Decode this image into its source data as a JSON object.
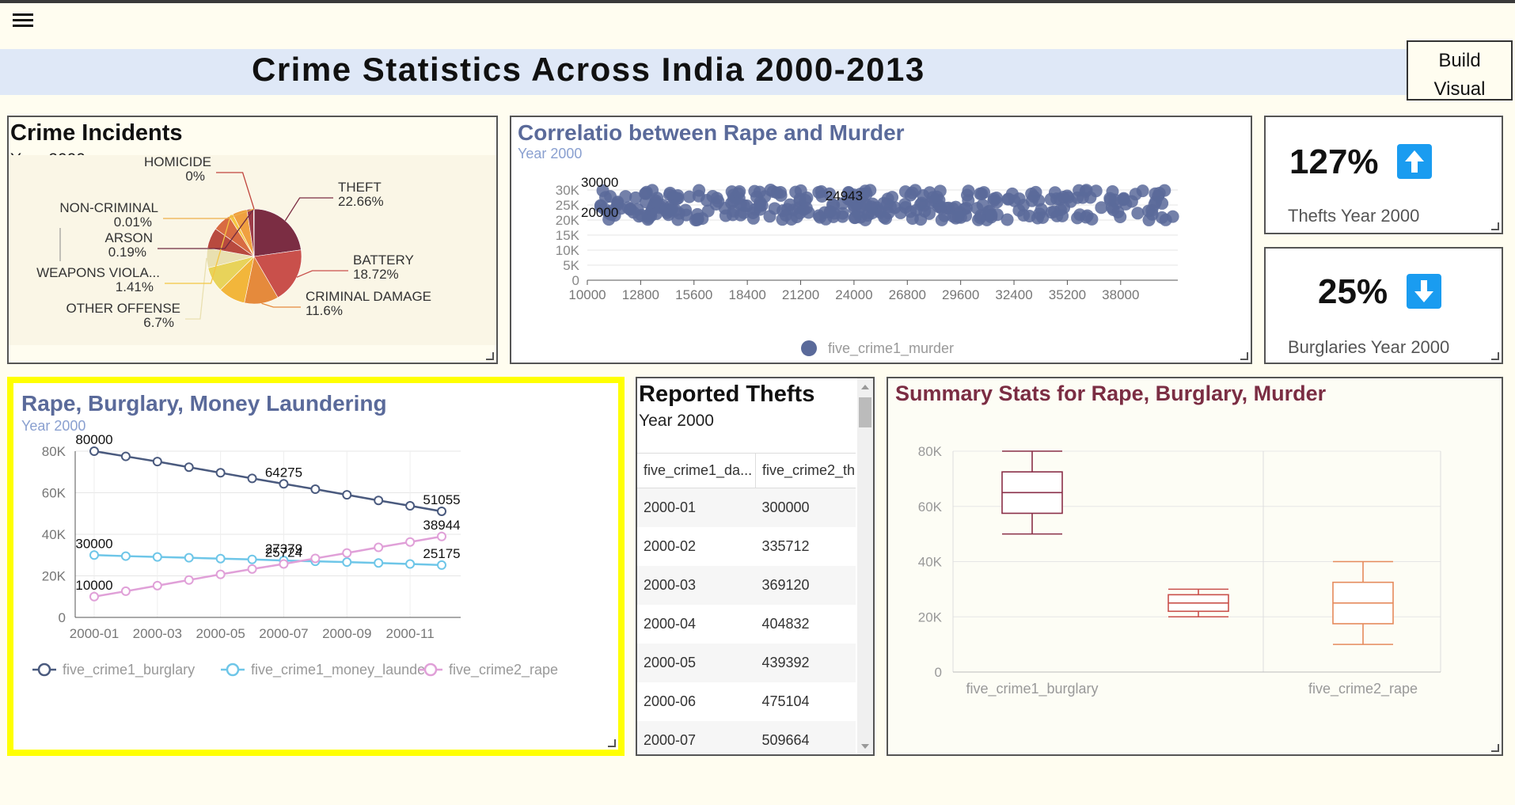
{
  "page": {
    "title": "Crime Statistics Across India 2000-2013",
    "build_button": [
      "Build",
      "Visual"
    ]
  },
  "crime_incidents": {
    "title": "Crime Incidents",
    "subtitle": "Year 2000",
    "chart_data": {
      "type": "pie",
      "slices": [
        {
          "label": "THEFT",
          "value": 22.66,
          "value_label": "22.66%",
          "color": "#7b2d43"
        },
        {
          "label": "BATTERY",
          "value": 18.72,
          "value_label": "18.72%",
          "color": "#c9504b"
        },
        {
          "label": "CRIMINAL DAMAGE",
          "value": 11.6,
          "value_label": "11.6%",
          "color": "#e58a3c"
        },
        {
          "label": "",
          "value": 9.2,
          "value_label": "",
          "color": "#f2b63b"
        },
        {
          "label": "",
          "value": 8.5,
          "value_label": "",
          "color": "#e8d35a"
        },
        {
          "label": "OTHER OFFENSE",
          "value": 6.7,
          "value_label": "6.7%",
          "color": "#e9e0b0"
        },
        {
          "label": "",
          "value": 7.0,
          "value_label": "",
          "color": "#b84a3f"
        },
        {
          "label": "",
          "value": 6.2,
          "value_label": "",
          "color": "#d86b42"
        },
        {
          "label": "WEAPONS VIOLA...",
          "value": 1.41,
          "value_label": "1.41%",
          "color": "#f4c542"
        },
        {
          "label": "",
          "value": 5.0,
          "value_label": "",
          "color": "#f0a040"
        },
        {
          "label": "",
          "value": 2.2,
          "value_label": "",
          "color": "#9c3b48"
        },
        {
          "label": "ARSON",
          "value": 0.19,
          "value_label": "0.19%",
          "color": "#6e2a40"
        },
        {
          "label": "NON-CRIMINAL",
          "value": 0.01,
          "value_label": "0.01%",
          "color": "#eeb04a"
        },
        {
          "label": "HOMICIDE",
          "value": 0.0,
          "value_label": "0%",
          "color": "#c0443c"
        }
      ]
    }
  },
  "correlation": {
    "title": "Correlatio between Rape and Murder",
    "subtitle": "Year 2000",
    "chart_data": {
      "type": "scatter",
      "series_name": "five_crime1_murder",
      "xlim": [
        10000,
        41000
      ],
      "ylim": [
        0,
        30000
      ],
      "x_ticks": [
        "10000",
        "12800",
        "15600",
        "18400",
        "21200",
        "24000",
        "26800",
        "29600",
        "32400",
        "35200",
        "38000"
      ],
      "y_ticks": [
        "0",
        "5K",
        "10K",
        "15K",
        "20K",
        "25K",
        "30K"
      ],
      "annotations": [
        {
          "text": "30000",
          "x": 10000,
          "y": 30000
        },
        {
          "text": "20000",
          "x": 10000,
          "y": 20000
        },
        {
          "text": "24943",
          "x": 22500,
          "y": 25500
        }
      ],
      "color": "#5a6a9a"
    }
  },
  "kpi": [
    {
      "value": "127%",
      "label": "Thefts Year 2000",
      "direction": "up-arrow-icon"
    },
    {
      "value": "25%",
      "label": "Burglaries Year 2000",
      "direction": "down-arrow-icon"
    }
  ],
  "line_chart": {
    "title": "Rape, Burglary, Money Laundering",
    "subtitle": "Year 2000",
    "chart_data": {
      "type": "line",
      "x": [
        "2000-01",
        "2000-02",
        "2000-03",
        "2000-04",
        "2000-05",
        "2000-06",
        "2000-07",
        "2000-08",
        "2000-09",
        "2000-10",
        "2000-11",
        "2000-12"
      ],
      "x_ticks": [
        "2000-01",
        "2000-03",
        "2000-05",
        "2000-07",
        "2000-09",
        "2000-11"
      ],
      "y_ticks": [
        "0",
        "20K",
        "40K",
        "60K",
        "80K"
      ],
      "ylim": [
        0,
        80000
      ],
      "series": [
        {
          "name": "five_crime1_burglary",
          "color": "#4a5a7e",
          "values": [
            80000,
            77500,
            75000,
            72300,
            69600,
            66900,
            64275,
            61700,
            59000,
            56300,
            53700,
            51055
          ]
        },
        {
          "name": "five_crime1_money_launder",
          "color": "#6ec6e8",
          "values": [
            30000,
            29500,
            29100,
            28700,
            28300,
            27900,
            27379,
            27000,
            26600,
            26200,
            25700,
            25175
          ]
        },
        {
          "name": "five_crime2_rape",
          "color": "#e0a0d8",
          "values": [
            10000,
            12600,
            15300,
            18000,
            20700,
            23300,
            25724,
            28400,
            31000,
            33700,
            36300,
            38944
          ]
        }
      ],
      "labels": [
        {
          "text": "80000",
          "series": 0,
          "index": 0
        },
        {
          "text": "64275",
          "series": 0,
          "index": 6
        },
        {
          "text": "51055",
          "series": 0,
          "index": 11
        },
        {
          "text": "30000",
          "series": 1,
          "index": 0
        },
        {
          "text": "27379",
          "series": 1,
          "index": 6
        },
        {
          "text": "25175",
          "series": 1,
          "index": 11
        },
        {
          "text": "10000",
          "series": 2,
          "index": 0
        },
        {
          "text": "25724",
          "series": 2,
          "index": 6
        },
        {
          "text": "38944",
          "series": 2,
          "index": 11
        }
      ]
    }
  },
  "thefts_table": {
    "title": "Reported Thefts",
    "subtitle": "Year 2000",
    "columns": [
      "five_crime1_da...",
      "five_crime2_th"
    ],
    "rows": [
      [
        "2000-01",
        "300000"
      ],
      [
        "2000-02",
        "335712"
      ],
      [
        "2000-03",
        "369120"
      ],
      [
        "2000-04",
        "404832"
      ],
      [
        "2000-05",
        "439392"
      ],
      [
        "2000-06",
        "475104"
      ],
      [
        "2000-07",
        "509664"
      ]
    ]
  },
  "boxplot": {
    "title": "Summary Stats for Rape, Burglary, Murder",
    "chart_data": {
      "type": "boxplot",
      "ylim": [
        0,
        80000
      ],
      "y_ticks": [
        "0",
        "20K",
        "40K",
        "60K",
        "80K"
      ],
      "x_labels": [
        "five_crime1_burglary",
        "five_crime2_rape"
      ],
      "boxes": [
        {
          "name": "five_crime1_burglary",
          "min": 50000,
          "q1": 57500,
          "median": 65000,
          "q3": 72500,
          "max": 80000,
          "color": "#8a2f48"
        },
        {
          "name": "",
          "min": 20000,
          "q1": 22000,
          "median": 25000,
          "q3": 28000,
          "max": 30000,
          "color": "#c9504b"
        },
        {
          "name": "five_crime2_rape",
          "min": 10000,
          "q1": 17500,
          "median": 25000,
          "q3": 32500,
          "max": 40000,
          "color": "#e58a5c"
        }
      ]
    }
  }
}
